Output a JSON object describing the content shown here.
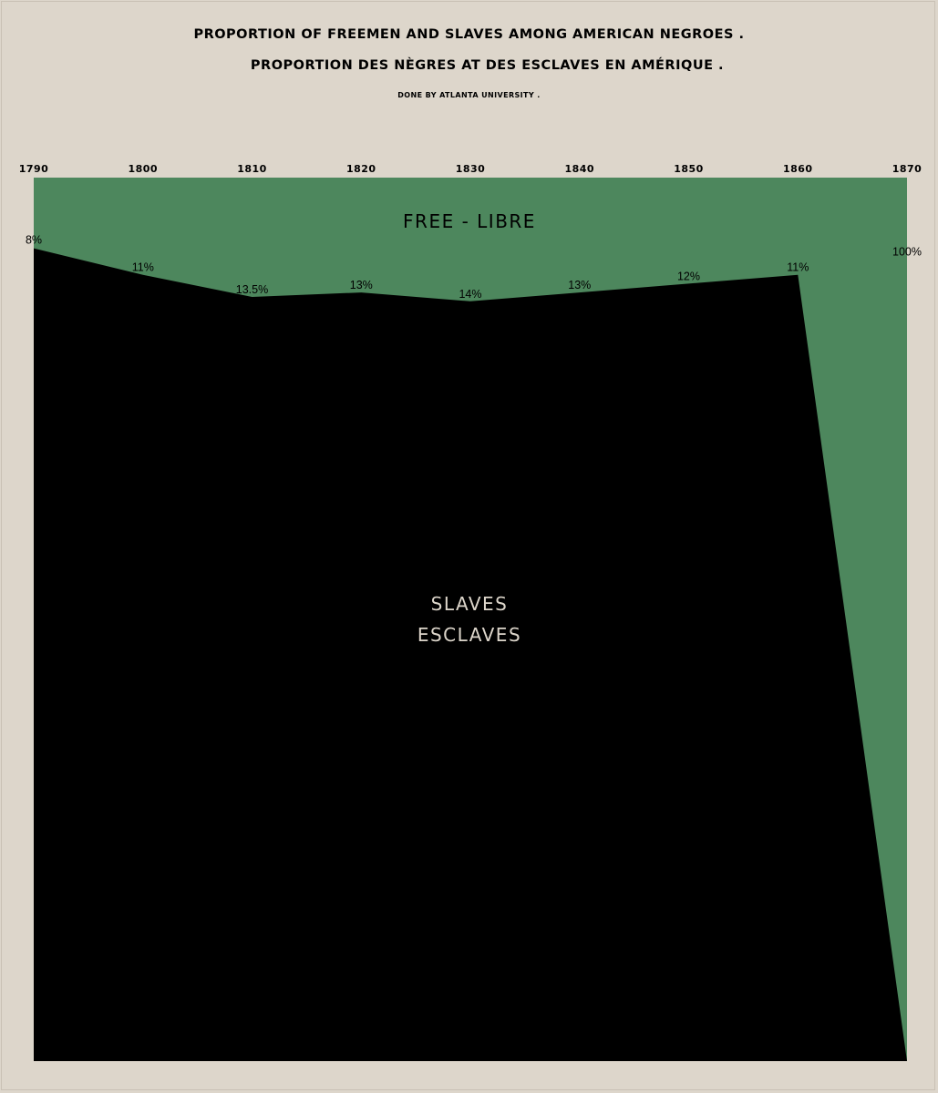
{
  "header": {
    "title": "PROPORTION OF FREEMEN AND SLAVES AMONG AMERICAN NEGROES .",
    "title_fr": "PROPORTION DES NÈGRES AT DES ESCLAVES EN AMÉRIQUE .",
    "credit": "DONE BY ATLANTA UNIVERSITY ."
  },
  "colors": {
    "background": "#ddd6cb",
    "free": "#4d875d",
    "slaves": "#000000",
    "slaves_text": "#ddd6cb"
  },
  "chart_data": {
    "type": "area",
    "x": [
      1790,
      1800,
      1810,
      1820,
      1830,
      1840,
      1850,
      1860,
      1870
    ],
    "x_tick_labels": [
      "1790",
      "1800",
      "1810",
      "1820",
      "1830",
      "1840",
      "1850",
      "1860",
      "1870"
    ],
    "x_axis_position": "top",
    "ylim": [
      0,
      100
    ],
    "stacking": "free on top, slaves below, summing to 100",
    "series": [
      {
        "key": "free",
        "values": [
          8,
          11,
          13.5,
          13,
          14,
          13,
          12,
          11,
          100
        ],
        "color": "#4d875d"
      },
      {
        "key": "slaves",
        "values": [
          92,
          89,
          86.5,
          87,
          86,
          87,
          88,
          89,
          0
        ],
        "color": "#000000"
      }
    ],
    "data_labels": [
      "8%",
      "11%",
      "13.5%",
      "13%",
      "14%",
      "13%",
      "12%",
      "11%",
      "100%"
    ],
    "region_labels": {
      "free": "FREE - LIBRE",
      "slaves_line1": "SLAVES",
      "slaves_line2": "ESCLAVES"
    },
    "grid": false,
    "legend": "none"
  }
}
